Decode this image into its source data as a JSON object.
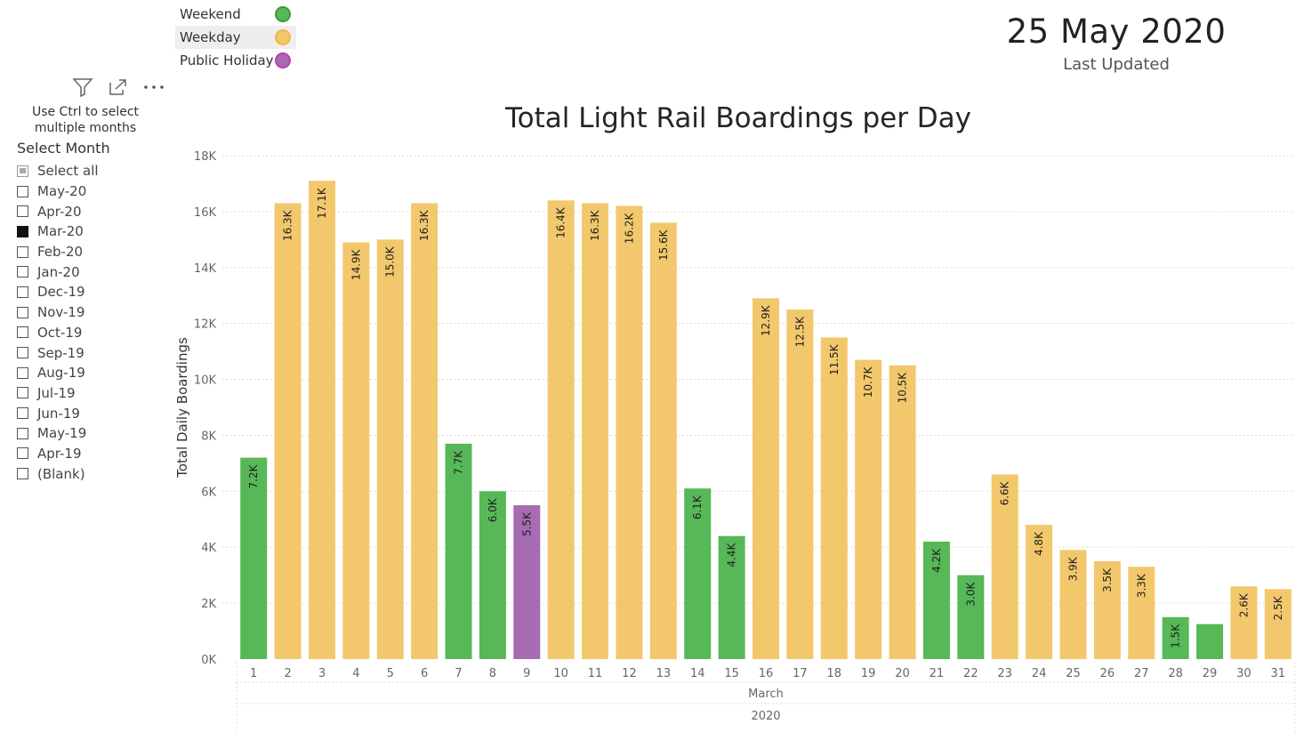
{
  "legend": {
    "items": [
      {
        "label": "Weekend",
        "color": "#56b856"
      },
      {
        "label": "Weekday",
        "color": "#f3c76b"
      },
      {
        "label": "Public Holiday",
        "color": "#a66bb3"
      }
    ]
  },
  "header": {
    "date": "25 May 2020",
    "date_label": "Last Updated"
  },
  "slicer": {
    "toolbar": [
      {
        "name": "filter-icon",
        "glyph": "⛛"
      },
      {
        "name": "focus-mode-icon",
        "glyph": "⤢"
      },
      {
        "name": "more-options-icon",
        "glyph": "⋯"
      }
    ],
    "hint_line1": "Use Ctrl to select",
    "hint_line2": "multiple months",
    "title": "Select Month",
    "options": [
      {
        "label": "Select all",
        "state": "partial"
      },
      {
        "label": "May-20",
        "state": "unchecked"
      },
      {
        "label": "Apr-20",
        "state": "unchecked"
      },
      {
        "label": "Mar-20",
        "state": "checked"
      },
      {
        "label": "Feb-20",
        "state": "unchecked"
      },
      {
        "label": "Jan-20",
        "state": "unchecked"
      },
      {
        "label": "Dec-19",
        "state": "unchecked"
      },
      {
        "label": "Nov-19",
        "state": "unchecked"
      },
      {
        "label": "Oct-19",
        "state": "unchecked"
      },
      {
        "label": "Sep-19",
        "state": "unchecked"
      },
      {
        "label": "Aug-19",
        "state": "unchecked"
      },
      {
        "label": "Jul-19",
        "state": "unchecked"
      },
      {
        "label": "Jun-19",
        "state": "unchecked"
      },
      {
        "label": "May-19",
        "state": "unchecked"
      },
      {
        "label": "Apr-19",
        "state": "unchecked"
      },
      {
        "label": "(Blank)",
        "state": "unchecked"
      }
    ]
  },
  "chart_data": {
    "type": "bar",
    "title": "Total Light Rail Boardings per Day",
    "ylabel": "Total Daily Boardings",
    "xlabel_month": "March",
    "xlabel_year": "2020",
    "ylim": [
      0,
      18000
    ],
    "yticks": [
      {
        "value": 0,
        "label": "0K"
      },
      {
        "value": 2000,
        "label": "2K"
      },
      {
        "value": 4000,
        "label": "4K"
      },
      {
        "value": 6000,
        "label": "6K"
      },
      {
        "value": 8000,
        "label": "8K"
      },
      {
        "value": 10000,
        "label": "10K"
      },
      {
        "value": 12000,
        "label": "12K"
      },
      {
        "value": 14000,
        "label": "14K"
      },
      {
        "value": 16000,
        "label": "16K"
      },
      {
        "value": 18000,
        "label": "18K"
      }
    ],
    "categories": [
      "1",
      "2",
      "3",
      "4",
      "5",
      "6",
      "7",
      "8",
      "9",
      "10",
      "11",
      "12",
      "13",
      "14",
      "15",
      "16",
      "17",
      "18",
      "19",
      "20",
      "21",
      "22",
      "23",
      "24",
      "25",
      "26",
      "27",
      "28",
      "29",
      "30",
      "31"
    ],
    "values": [
      7200,
      16300,
      17100,
      14900,
      15000,
      16300,
      7700,
      6000,
      5500,
      16400,
      16300,
      16200,
      15600,
      6100,
      4400,
      12900,
      12500,
      11500,
      10700,
      10500,
      4200,
      3000,
      6600,
      4800,
      3900,
      3500,
      3300,
      1500,
      1250,
      2600,
      2500
    ],
    "data_labels": [
      "7.2K",
      "16.3K",
      "17.1K",
      "14.9K",
      "15.0K",
      "16.3K",
      "7.7K",
      "6.0K",
      "5.5K",
      "16.4K",
      "16.3K",
      "16.2K",
      "15.6K",
      "6.1K",
      "4.4K",
      "12.9K",
      "12.5K",
      "11.5K",
      "10.7K",
      "10.5K",
      "4.2K",
      "3.0K",
      "6.6K",
      "4.8K",
      "3.9K",
      "3.5K",
      "3.3K",
      "1.5K",
      "",
      "2.6K",
      "2.5K"
    ],
    "day_type": [
      "Weekend",
      "Weekday",
      "Weekday",
      "Weekday",
      "Weekday",
      "Weekday",
      "Weekend",
      "Weekend",
      "Public Holiday",
      "Weekday",
      "Weekday",
      "Weekday",
      "Weekday",
      "Weekend",
      "Weekend",
      "Weekday",
      "Weekday",
      "Weekday",
      "Weekday",
      "Weekday",
      "Weekend",
      "Weekend",
      "Weekday",
      "Weekday",
      "Weekday",
      "Weekday",
      "Weekday",
      "Weekend",
      "Weekend",
      "Weekday",
      "Weekday"
    ],
    "colors": {
      "Weekend": "#56b856",
      "Weekday": "#f3c76b",
      "Public Holiday": "#a66bb3"
    },
    "grid": true,
    "legend_position": "top-left"
  }
}
